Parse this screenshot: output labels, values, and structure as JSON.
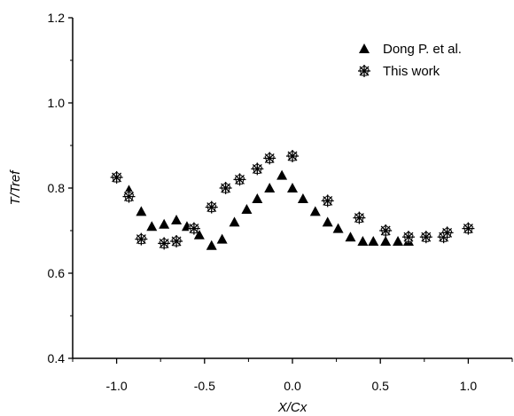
{
  "chart_data": {
    "type": "scatter",
    "title": "",
    "xlabel": "X/Cx",
    "ylabel": "T/Tref",
    "xlim": [
      -1.25,
      1.25
    ],
    "ylim": [
      0.4,
      1.2
    ],
    "xticks": [
      -1.0,
      -0.5,
      0.0,
      0.5,
      1.0
    ],
    "xtick_labels": [
      "-1.0",
      "-0.5",
      "0.0",
      "0.5",
      "1.0"
    ],
    "yticks": [
      0.4,
      0.6,
      0.8,
      1.0,
      1.2
    ],
    "ytick_labels": [
      "0.4",
      "0.6",
      "0.8",
      "1.0",
      "1.2"
    ],
    "grid": false,
    "legend_position": "top-right",
    "series": [
      {
        "name": "Dong P. et al.",
        "marker": "filled-triangle",
        "color": "#000000",
        "points": [
          [
            -0.93,
            0.795
          ],
          [
            -0.86,
            0.745
          ],
          [
            -0.8,
            0.71
          ],
          [
            -0.73,
            0.715
          ],
          [
            -0.66,
            0.725
          ],
          [
            -0.6,
            0.71
          ],
          [
            -0.53,
            0.69
          ],
          [
            -0.46,
            0.665
          ],
          [
            -0.4,
            0.68
          ],
          [
            -0.33,
            0.72
          ],
          [
            -0.26,
            0.75
          ],
          [
            -0.2,
            0.775
          ],
          [
            -0.13,
            0.8
          ],
          [
            -0.06,
            0.83
          ],
          [
            0.0,
            0.8
          ],
          [
            0.06,
            0.775
          ],
          [
            0.13,
            0.745
          ],
          [
            0.2,
            0.72
          ],
          [
            0.26,
            0.705
          ],
          [
            0.33,
            0.685
          ],
          [
            0.4,
            0.675
          ],
          [
            0.46,
            0.675
          ],
          [
            0.53,
            0.675
          ],
          [
            0.6,
            0.675
          ],
          [
            0.66,
            0.675
          ]
        ]
      },
      {
        "name": "This work",
        "marker": "asterisk-star",
        "color": "#000000",
        "points": [
          [
            -1.0,
            0.825
          ],
          [
            -0.93,
            0.78
          ],
          [
            -0.86,
            0.68
          ],
          [
            -0.73,
            0.67
          ],
          [
            -0.66,
            0.675
          ],
          [
            -0.56,
            0.705
          ],
          [
            -0.46,
            0.755
          ],
          [
            -0.38,
            0.8
          ],
          [
            -0.3,
            0.82
          ],
          [
            -0.2,
            0.845
          ],
          [
            -0.13,
            0.87
          ],
          [
            0.0,
            0.875
          ],
          [
            0.2,
            0.77
          ],
          [
            0.38,
            0.73
          ],
          [
            0.53,
            0.7
          ],
          [
            0.66,
            0.685
          ],
          [
            0.76,
            0.685
          ],
          [
            0.86,
            0.685
          ],
          [
            0.88,
            0.695
          ],
          [
            1.0,
            0.705
          ]
        ]
      }
    ]
  }
}
